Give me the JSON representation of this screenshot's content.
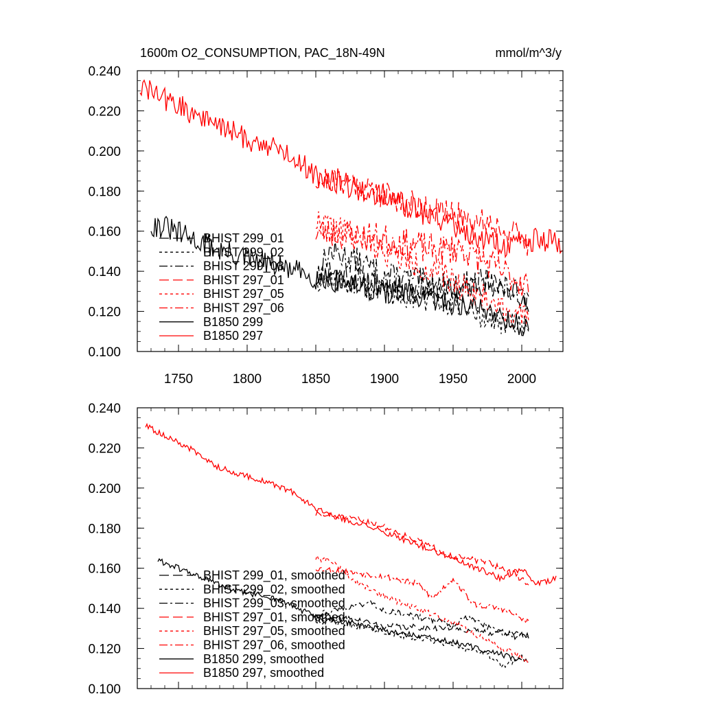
{
  "figure": {
    "title": "1600m O2_CONSUMPTION, PAC_18N-49N",
    "units": "mmol/m^3/y"
  },
  "style": {
    "black": "#000000",
    "red": "#ff0000",
    "dash": {
      "solid": "",
      "dashed": "14 6",
      "dotted": "4 4",
      "dashdot": "12 4 3 4"
    }
  },
  "chart_data": [
    {
      "type": "line",
      "panel": "top",
      "title": "1600m O2_CONSUMPTION, PAC_18N-49N",
      "xlabel": "",
      "ylabel": "mmol/m^3/y",
      "xlim": [
        1720,
        2030
      ],
      "ylim": [
        0.1,
        0.24
      ],
      "x_ticks": [
        1750,
        1800,
        1850,
        1900,
        1950,
        2000
      ],
      "x_tick_labels": [
        "1750",
        "1800",
        "1850",
        "1900",
        "1950",
        "2000"
      ],
      "y_ticks": [
        0.1,
        0.12,
        0.14,
        0.16,
        0.18,
        0.2,
        0.22,
        0.24
      ],
      "y_tick_labels": [
        "0.100",
        "0.120",
        "0.140",
        "0.160",
        "0.180",
        "0.200",
        "0.220",
        "0.240"
      ],
      "legend_position": "bottom-left",
      "series": [
        {
          "name": "BHIST 299_01",
          "color": "black",
          "dash": "dashed",
          "noise": 0.006,
          "seed": 11,
          "points": [
            [
              1850,
              0.136
            ],
            [
              1860,
              0.141
            ],
            [
              1875,
              0.138
            ],
            [
              1900,
              0.133
            ],
            [
              1950,
              0.13
            ],
            [
              1970,
              0.134
            ],
            [
              1985,
              0.133
            ],
            [
              2005,
              0.126
            ]
          ]
        },
        {
          "name": "BHIST 299_02",
          "color": "black",
          "dash": "dotted",
          "noise": 0.006,
          "seed": 12,
          "points": [
            [
              1850,
              0.136
            ],
            [
              1870,
              0.134
            ],
            [
              1900,
              0.13
            ],
            [
              1950,
              0.123
            ],
            [
              1985,
              0.114
            ],
            [
              2005,
              0.112
            ]
          ]
        },
        {
          "name": "BHIST 299_03",
          "color": "black",
          "dash": "dashdot",
          "noise": 0.007,
          "seed": 13,
          "points": [
            [
              1850,
              0.137
            ],
            [
              1860,
              0.15
            ],
            [
              1880,
              0.145
            ],
            [
              1900,
              0.138
            ],
            [
              1950,
              0.132
            ],
            [
              1975,
              0.135
            ],
            [
              2005,
              0.126
            ]
          ]
        },
        {
          "name": "BHIST 297_01",
          "color": "red",
          "dash": "dashed",
          "noise": 0.007,
          "seed": 21,
          "points": [
            [
              1850,
              0.186
            ],
            [
              1875,
              0.185
            ],
            [
              1900,
              0.178
            ],
            [
              1950,
              0.168
            ],
            [
              1975,
              0.165
            ],
            [
              2000,
              0.156
            ],
            [
              2005,
              0.152
            ]
          ]
        },
        {
          "name": "BHIST 297_05",
          "color": "red",
          "dash": "dotted",
          "noise": 0.007,
          "seed": 22,
          "points": [
            [
              1850,
              0.165
            ],
            [
              1870,
              0.16
            ],
            [
              1900,
              0.15
            ],
            [
              1950,
              0.135
            ],
            [
              1985,
              0.122
            ],
            [
              2005,
              0.115
            ]
          ]
        },
        {
          "name": "BHIST 297_06",
          "color": "red",
          "dash": "dashdot",
          "noise": 0.008,
          "seed": 23,
          "points": [
            [
              1850,
              0.16
            ],
            [
              1875,
              0.158
            ],
            [
              1900,
              0.156
            ],
            [
              1940,
              0.15
            ],
            [
              1955,
              0.152
            ],
            [
              1985,
              0.14
            ],
            [
              2005,
              0.133
            ]
          ]
        },
        {
          "name": "B1850 299",
          "color": "black",
          "dash": "solid",
          "noise": 0.006,
          "seed": 31,
          "points": [
            [
              1730,
              0.163
            ],
            [
              1740,
              0.162
            ],
            [
              1760,
              0.156
            ],
            [
              1790,
              0.148
            ],
            [
              1820,
              0.143
            ],
            [
              1850,
              0.137
            ],
            [
              1900,
              0.13
            ],
            [
              1950,
              0.124
            ],
            [
              1980,
              0.12
            ],
            [
              2005,
              0.11
            ]
          ]
        },
        {
          "name": "B1850 297",
          "color": "red",
          "dash": "solid",
          "noise": 0.006,
          "seed": 32,
          "points": [
            [
              1722,
              0.232
            ],
            [
              1740,
              0.226
            ],
            [
              1760,
              0.219
            ],
            [
              1800,
              0.206
            ],
            [
              1830,
              0.199
            ],
            [
              1850,
              0.188
            ],
            [
              1900,
              0.177
            ],
            [
              1950,
              0.163
            ],
            [
              1985,
              0.152
            ],
            [
              2010,
              0.156
            ],
            [
              2030,
              0.154
            ]
          ]
        }
      ]
    },
    {
      "type": "line",
      "panel": "bottom",
      "title": "",
      "xlabel": "",
      "ylabel": "",
      "xlim": [
        1720,
        2030
      ],
      "ylim": [
        0.1,
        0.24
      ],
      "x_ticks": [
        1750,
        1800,
        1850,
        1900,
        1950,
        2000
      ],
      "x_tick_labels": [],
      "y_ticks": [
        0.1,
        0.12,
        0.14,
        0.16,
        0.18,
        0.2,
        0.22,
        0.24
      ],
      "y_tick_labels": [
        "0.100",
        "0.120",
        "0.140",
        "0.160",
        "0.180",
        "0.200",
        "0.220",
        "0.240"
      ],
      "legend_position": "bottom-left",
      "series": [
        {
          "name": "BHIST 299_01, smoothed",
          "color": "black",
          "dash": "dashed",
          "noise": 0.0015,
          "seed": 41,
          "points": [
            [
              1850,
              0.134
            ],
            [
              1875,
              0.135
            ],
            [
              1900,
              0.131
            ],
            [
              1950,
              0.13
            ],
            [
              1962,
              0.129
            ],
            [
              1975,
              0.128
            ],
            [
              1990,
              0.128
            ],
            [
              2005,
              0.126
            ]
          ]
        },
        {
          "name": "BHIST 299_02, smoothed",
          "color": "black",
          "dash": "dotted",
          "noise": 0.0015,
          "seed": 42,
          "points": [
            [
              1850,
              0.134
            ],
            [
              1875,
              0.132
            ],
            [
              1900,
              0.128
            ],
            [
              1950,
              0.122
            ],
            [
              1975,
              0.117
            ],
            [
              1985,
              0.111
            ],
            [
              2000,
              0.116
            ],
            [
              2005,
              0.112
            ]
          ]
        },
        {
          "name": "BHIST 299_03, smoothed",
          "color": "black",
          "dash": "dashdot",
          "noise": 0.0015,
          "seed": 43,
          "points": [
            [
              1850,
              0.137
            ],
            [
              1870,
              0.14
            ],
            [
              1890,
              0.143
            ],
            [
              1900,
              0.139
            ],
            [
              1950,
              0.132
            ],
            [
              1962,
              0.136
            ],
            [
              1975,
              0.131
            ],
            [
              1990,
              0.126
            ],
            [
              2005,
              0.126
            ]
          ]
        },
        {
          "name": "BHIST 297_01, smoothed",
          "color": "red",
          "dash": "dashed",
          "noise": 0.0015,
          "seed": 51,
          "points": [
            [
              1850,
              0.187
            ],
            [
              1875,
              0.185
            ],
            [
              1890,
              0.183
            ],
            [
              1910,
              0.178
            ],
            [
              1950,
              0.166
            ],
            [
              1975,
              0.163
            ],
            [
              1995,
              0.157
            ],
            [
              2005,
              0.152
            ]
          ]
        },
        {
          "name": "BHIST 297_05, smoothed",
          "color": "red",
          "dash": "dotted",
          "noise": 0.0015,
          "seed": 52,
          "points": [
            [
              1850,
              0.165
            ],
            [
              1860,
              0.164
            ],
            [
              1880,
              0.153
            ],
            [
              1900,
              0.146
            ],
            [
              1950,
              0.133
            ],
            [
              1975,
              0.124
            ],
            [
              2005,
              0.114
            ]
          ]
        },
        {
          "name": "BHIST 297_06, smoothed",
          "color": "red",
          "dash": "dashdot",
          "noise": 0.0015,
          "seed": 53,
          "points": [
            [
              1850,
              0.16
            ],
            [
              1875,
              0.158
            ],
            [
              1900,
              0.156
            ],
            [
              1925,
              0.152
            ],
            [
              1935,
              0.145
            ],
            [
              1950,
              0.155
            ],
            [
              1965,
              0.142
            ],
            [
              1985,
              0.14
            ],
            [
              2005,
              0.133
            ]
          ]
        },
        {
          "name": "B1850 299, smoothed",
          "color": "black",
          "dash": "solid",
          "noise": 0.0015,
          "seed": 61,
          "points": [
            [
              1735,
              0.164
            ],
            [
              1750,
              0.16
            ],
            [
              1790,
              0.149
            ],
            [
              1820,
              0.145
            ],
            [
              1850,
              0.136
            ],
            [
              1900,
              0.129
            ],
            [
              1950,
              0.123
            ],
            [
              1980,
              0.118
            ],
            [
              2000,
              0.114
            ]
          ]
        },
        {
          "name": "B1850 297, smoothed",
          "color": "red",
          "dash": "solid",
          "noise": 0.0015,
          "seed": 62,
          "points": [
            [
              1726,
              0.231
            ],
            [
              1740,
              0.226
            ],
            [
              1760,
              0.219
            ],
            [
              1780,
              0.21
            ],
            [
              1800,
              0.206
            ],
            [
              1830,
              0.199
            ],
            [
              1855,
              0.188
            ],
            [
              1900,
              0.178
            ],
            [
              1950,
              0.165
            ],
            [
              1985,
              0.155
            ],
            [
              2000,
              0.16
            ],
            [
              2010,
              0.152
            ],
            [
              2025,
              0.155
            ]
          ]
        }
      ]
    }
  ]
}
